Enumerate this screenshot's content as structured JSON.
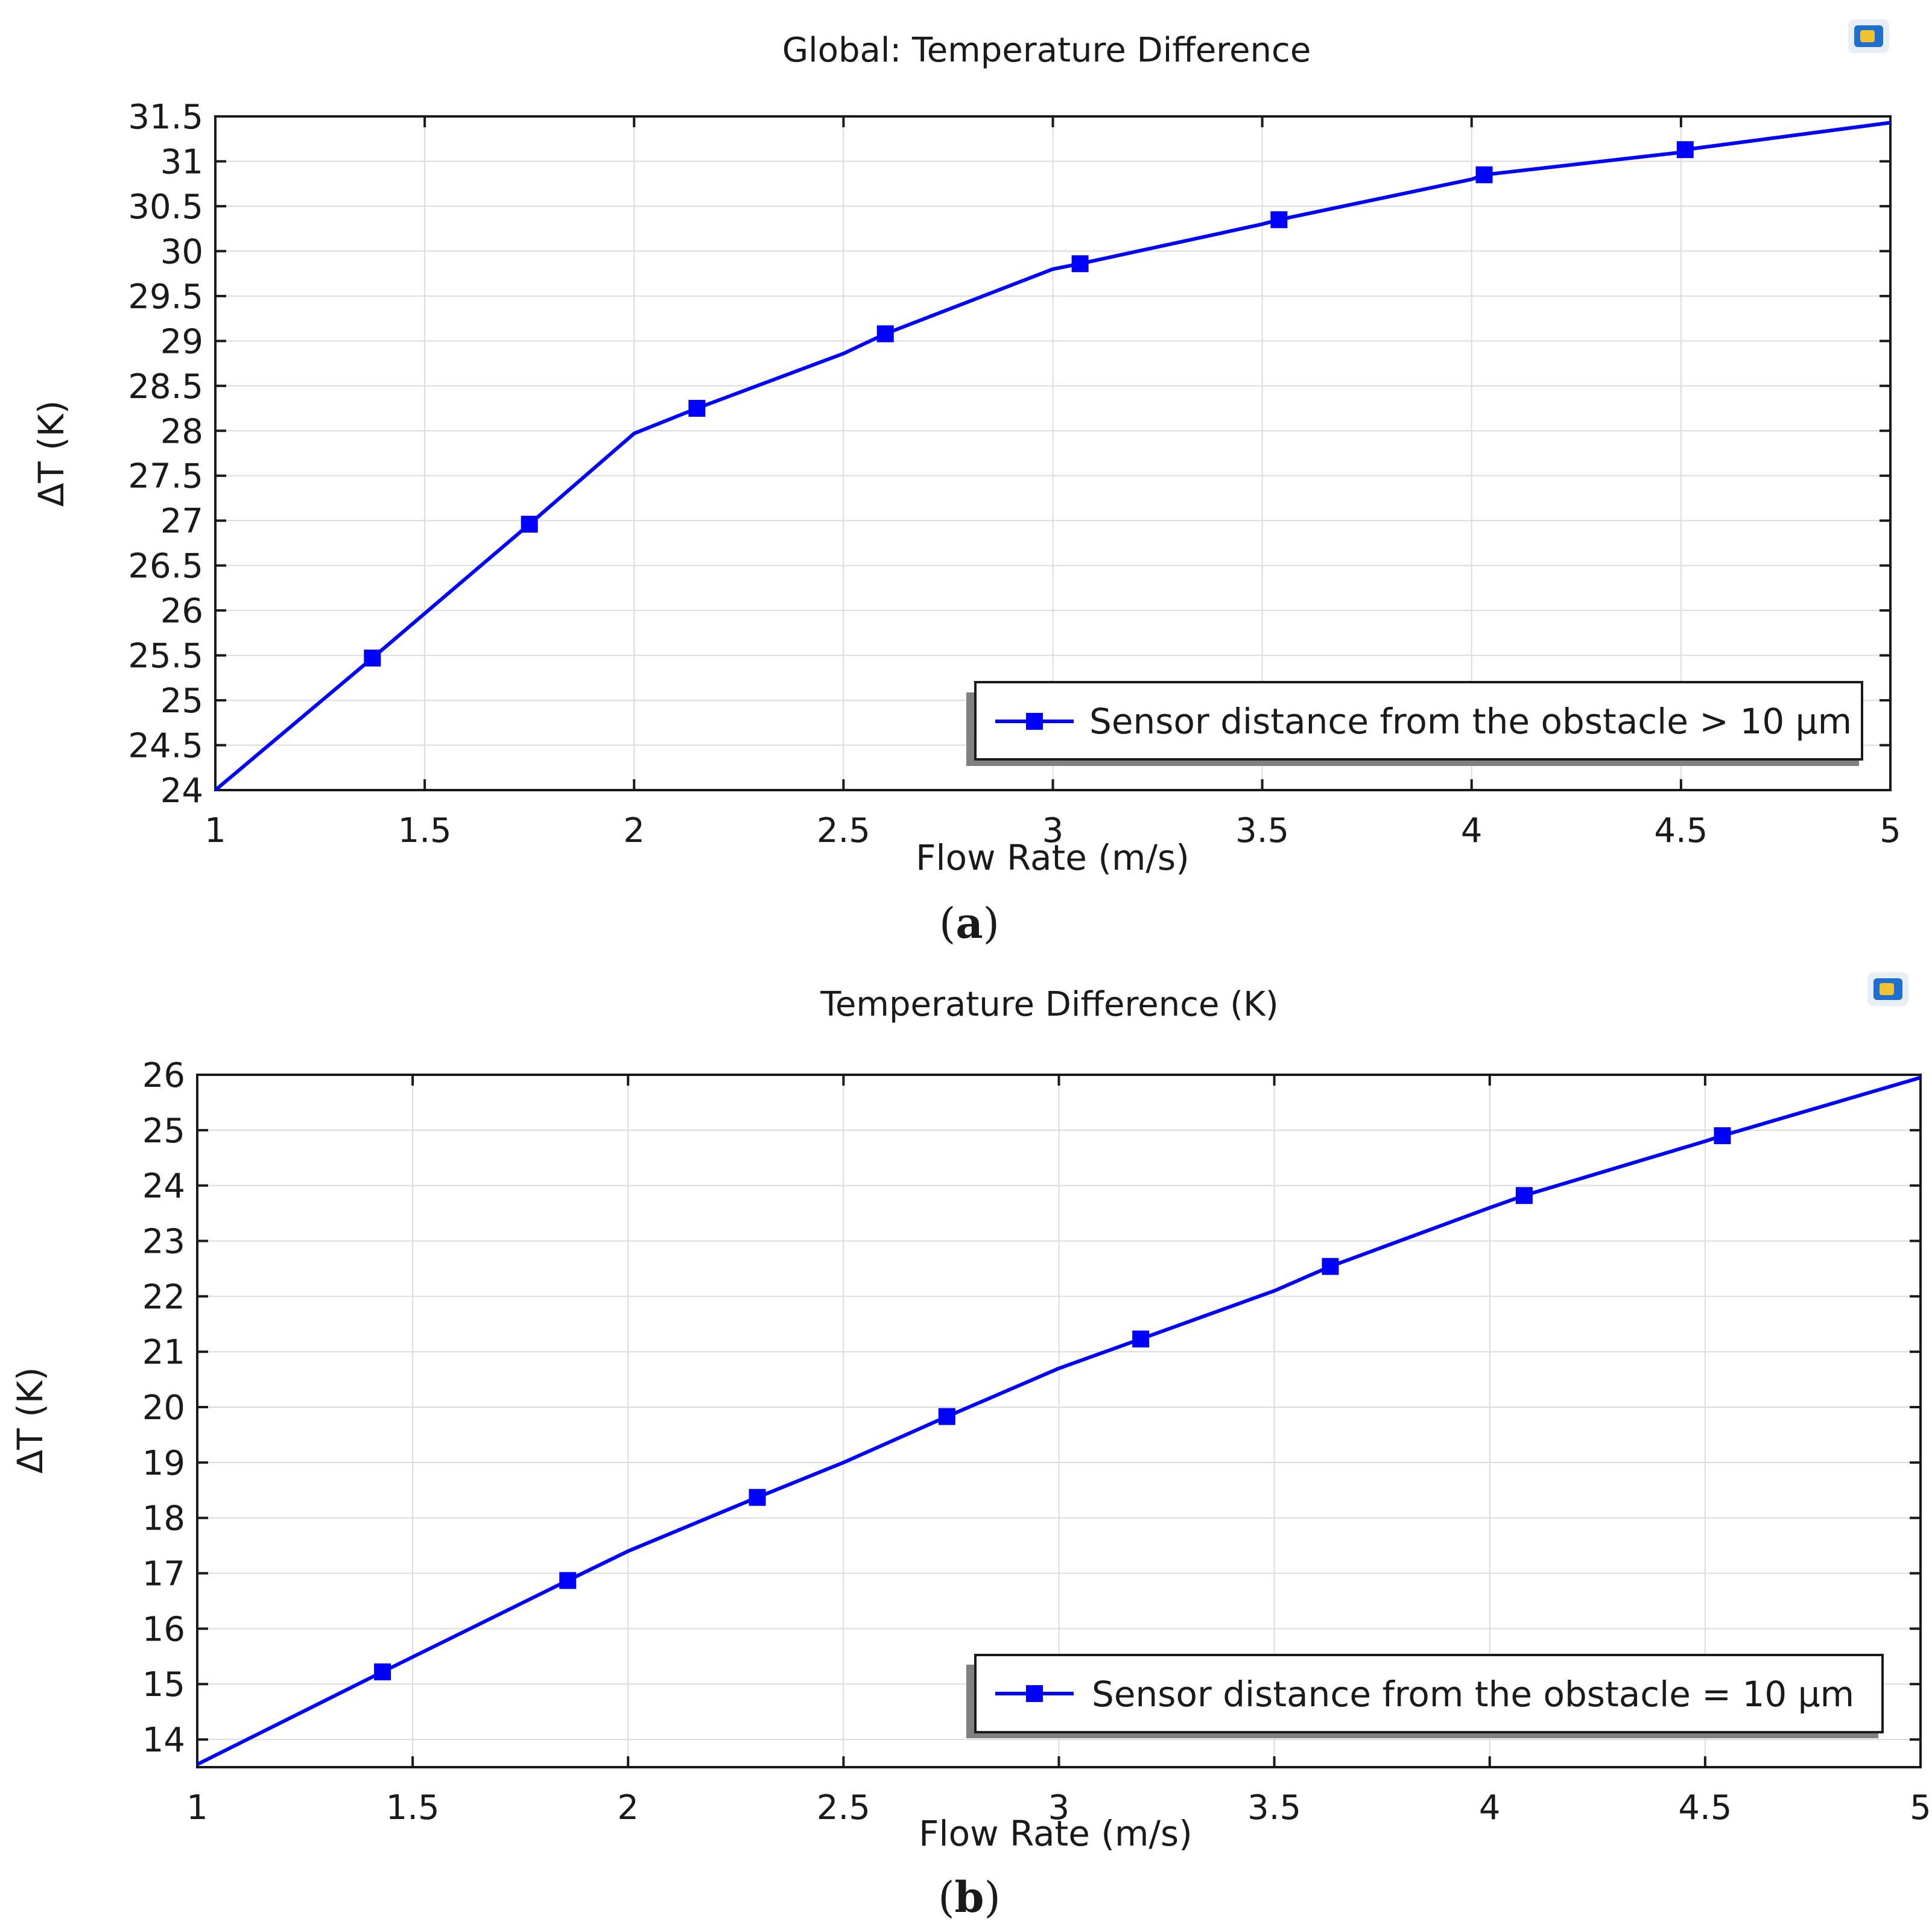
{
  "chart_data": [
    {
      "type": "line",
      "title": "Global: Temperature Difference",
      "xlabel": "Flow Rate (m/s)",
      "ylabel": "ΔT (K)",
      "xlim": [
        1,
        5
      ],
      "ylim": [
        24,
        31.5
      ],
      "xticks": [
        1,
        1.5,
        2,
        2.5,
        3,
        3.5,
        4,
        4.5,
        5
      ],
      "xtick_labels": [
        "1",
        "1.5",
        "2",
        "2.5",
        "3",
        "3.5",
        "4",
        "4.5",
        "5"
      ],
      "yticks": [
        24,
        24.5,
        25,
        25.5,
        26,
        26.5,
        27,
        27.5,
        28,
        28.5,
        29,
        29.5,
        30,
        30.5,
        31,
        31.5
      ],
      "ytick_labels": [
        "24",
        "24.5",
        "25",
        "25.5",
        "26",
        "26.5",
        "27",
        "27.5",
        "28",
        "28.5",
        "29",
        "29.5",
        "30",
        "30.5",
        "31",
        "31.5"
      ],
      "grid": true,
      "legend_position": "bottom-right",
      "panel_label": "a",
      "series": [
        {
          "name": "Sensor distance from the obstacle > 10 μm",
          "color": "#0000ff",
          "x": [
            1,
            1.375,
            1.75,
            2,
            2.15,
            2.5,
            2.6,
            3,
            3.065,
            3.5,
            3.54,
            4,
            4.03,
            4.5,
            4.51,
            5
          ],
          "y": [
            24,
            25.47,
            26.96,
            27.97,
            28.25,
            28.86,
            29.08,
            29.8,
            29.86,
            30.3,
            30.35,
            30.8,
            30.85,
            31.1,
            31.13,
            31.43
          ],
          "markers": [
            {
              "x": 1.375,
              "y": 25.47
            },
            {
              "x": 1.75,
              "y": 26.96
            },
            {
              "x": 2.15,
              "y": 28.25
            },
            {
              "x": 2.6,
              "y": 29.08
            },
            {
              "x": 3.065,
              "y": 29.86
            },
            {
              "x": 3.54,
              "y": 30.35
            },
            {
              "x": 4.03,
              "y": 30.85
            },
            {
              "x": 4.51,
              "y": 31.13
            }
          ]
        }
      ]
    },
    {
      "type": "line",
      "title": "Temperature Difference (K)",
      "xlabel": "Flow Rate (m/s)",
      "ylabel": "ΔT (K)",
      "xlim": [
        1,
        5
      ],
      "ylim": [
        13.5,
        26
      ],
      "xticks": [
        1,
        1.5,
        2,
        2.5,
        3,
        3.5,
        4,
        4.5,
        5
      ],
      "xtick_labels": [
        "1",
        "1.5",
        "2",
        "2.5",
        "3",
        "3.5",
        "4",
        "4.5",
        "5"
      ],
      "yticks": [
        14,
        15,
        16,
        17,
        18,
        19,
        20,
        21,
        22,
        23,
        24,
        25,
        26
      ],
      "ytick_labels": [
        "14",
        "15",
        "16",
        "17",
        "18",
        "19",
        "20",
        "21",
        "22",
        "23",
        "24",
        "25",
        "26"
      ],
      "grid": true,
      "legend_position": "bottom-right",
      "panel_label": "b",
      "series": [
        {
          "name": "Sensor distance from the obstacle = 10 μm",
          "color": "#0000ff",
          "x": [
            1,
            1.43,
            1.86,
            2,
            2.3,
            2.5,
            2.74,
            3,
            3.19,
            3.5,
            3.63,
            4,
            4.08,
            4.5,
            4.54,
            5
          ],
          "y": [
            13.55,
            15.22,
            16.87,
            17.4,
            18.37,
            19.0,
            19.83,
            20.7,
            21.23,
            22.1,
            22.54,
            23.6,
            23.82,
            24.8,
            24.9,
            25.95
          ],
          "markers": [
            {
              "x": 1.43,
              "y": 15.22
            },
            {
              "x": 1.86,
              "y": 16.87
            },
            {
              "x": 2.3,
              "y": 18.37
            },
            {
              "x": 2.74,
              "y": 19.83
            },
            {
              "x": 3.19,
              "y": 21.23
            },
            {
              "x": 3.63,
              "y": 22.54
            },
            {
              "x": 4.08,
              "y": 23.82
            },
            {
              "x": 4.54,
              "y": 24.9
            }
          ]
        }
      ]
    }
  ]
}
